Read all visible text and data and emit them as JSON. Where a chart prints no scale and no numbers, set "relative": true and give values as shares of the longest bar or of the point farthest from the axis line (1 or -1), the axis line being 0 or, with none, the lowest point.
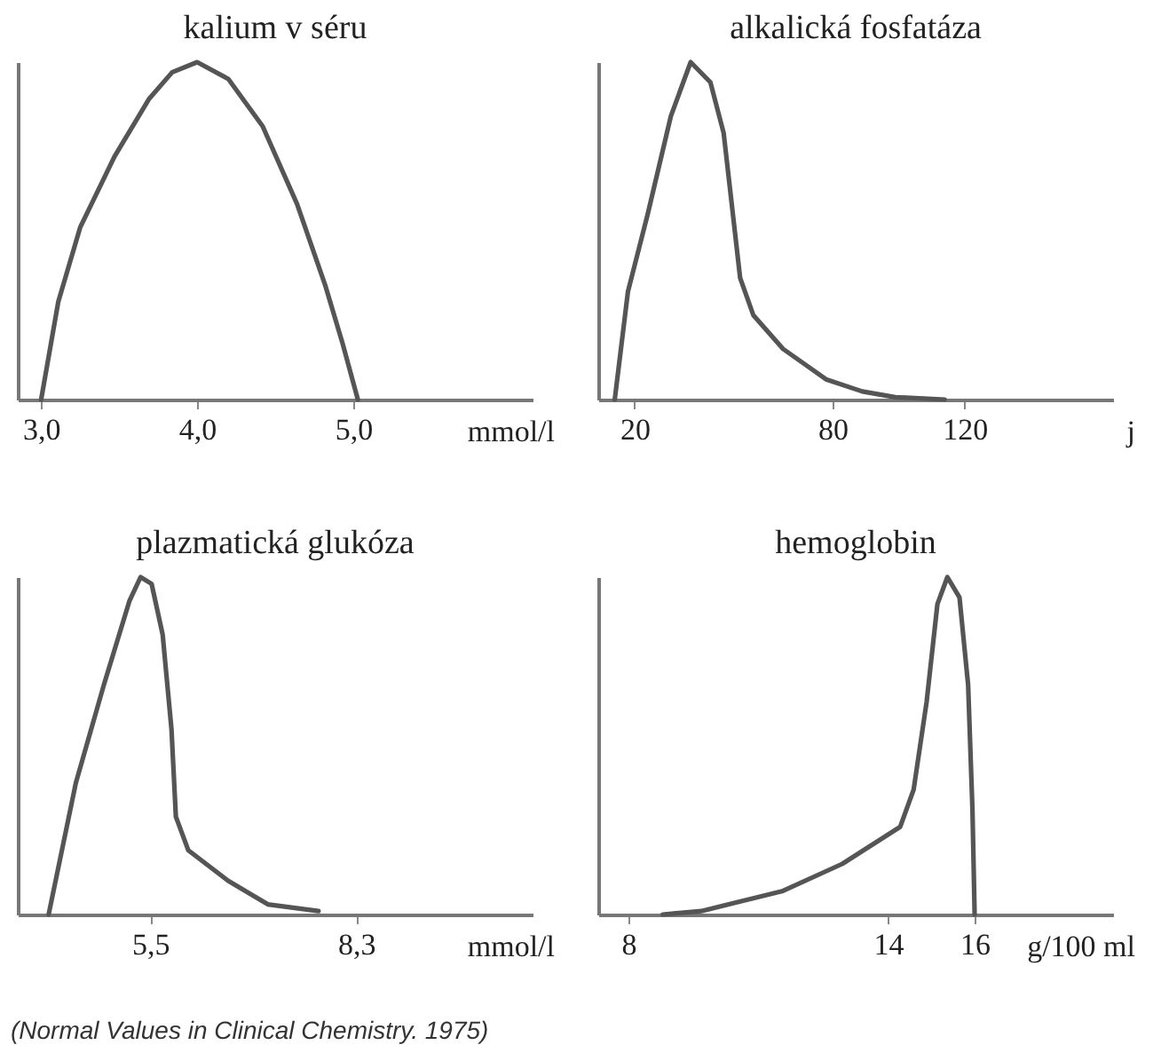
{
  "chart_data": [
    {
      "type": "line",
      "title": "kalium v séru",
      "xlabel": "mmol/l",
      "relative": true,
      "xlim": [
        2.85,
        6.15
      ],
      "xticks": [
        {
          "value": 3,
          "label": "3,0"
        },
        {
          "value": 4,
          "label": "4,0"
        },
        {
          "value": 5,
          "label": "5,0"
        }
      ],
      "tick_labels": "x",
      "x": [
        3.0,
        3.11,
        3.25,
        3.47,
        3.69,
        3.84,
        4.0,
        4.2,
        4.42,
        4.64,
        4.82,
        4.93,
        5.03
      ],
      "series": [
        {
          "color": "#555555",
          "values": [
            0,
            0.29,
            0.51,
            0.72,
            0.89,
            0.97,
            1,
            0.95,
            0.81,
            0.58,
            0.34,
            0.17,
            0
          ]
        }
      ]
    },
    {
      "type": "line",
      "title": "alkalická fosfatáza",
      "xlabel": "j",
      "relative": true,
      "xlim": [
        9,
        165
      ],
      "xticks": [
        20,
        80,
        120
      ],
      "tick_labels": "x",
      "x": [
        14,
        18,
        24,
        31,
        37,
        43,
        47,
        52,
        56,
        65,
        78,
        89,
        99,
        114
      ],
      "series": [
        {
          "color": "#555555",
          "values": [
            0,
            0.32,
            0.55,
            0.84,
            1,
            0.94,
            0.79,
            0.36,
            0.25,
            0.15,
            0.06,
            0.024,
            0.007,
            0
          ]
        }
      ]
    },
    {
      "type": "line",
      "title": "plazmatická glukóza",
      "xlabel": "mmol/l",
      "relative": true,
      "xlim": [
        3.7,
        10.7
      ],
      "xticks": [
        {
          "value": 5.5,
          "label": "5,5"
        },
        {
          "value": 8.3,
          "label": "8,3"
        }
      ],
      "tick_labels": "x",
      "annotations": [
        "(Normal Values in Clinical Chemistry. 1975)"
      ],
      "x": [
        4.12,
        4.49,
        4.87,
        5.22,
        5.37,
        5.52,
        5.67,
        5.79,
        5.85,
        6.02,
        6.56,
        7.1,
        7.79
      ],
      "series": [
        {
          "color": "#555555",
          "values": [
            0,
            0.39,
            0.68,
            0.93,
            1,
            0.98,
            0.83,
            0.55,
            0.29,
            0.19,
            0.1,
            0.03,
            0.01
          ]
        }
      ]
    },
    {
      "type": "line",
      "title": "hemoglobin",
      "xlabel": "g/100 ml",
      "relative": true,
      "xlim": [
        7.3,
        19.2
      ],
      "xticks": [
        8,
        14,
        16
      ],
      "tick_labels": "x",
      "x": [
        8.79,
        9.68,
        11.57,
        12.94,
        14.28,
        14.59,
        14.89,
        15.14,
        15.37,
        15.65,
        15.85,
        15.95,
        16
      ],
      "series": [
        {
          "color": "#555555",
          "values": [
            0,
            0.01,
            0.07,
            0.15,
            0.26,
            0.37,
            0.63,
            0.92,
            1,
            0.94,
            0.68,
            0.31,
            0
          ]
        }
      ]
    }
  ]
}
